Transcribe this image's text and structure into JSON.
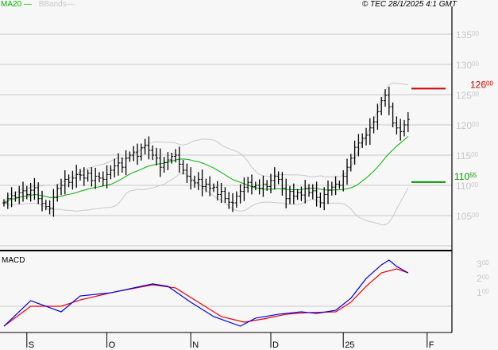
{
  "legend": {
    "ma_label": "MA20",
    "bb_label": "BBands",
    "ma_color": "#00b000",
    "bb_color": "#c8c8c8"
  },
  "copyright": "© TEC 28/1/2025 4:1 GMT",
  "macd_label": "MACD",
  "chart_data": {
    "type": "line",
    "title": "",
    "price_axis": {
      "ticks": [
        {
          "int": "135",
          "dec": "00",
          "v": 135
        },
        {
          "int": "130",
          "dec": "00",
          "v": 130
        },
        {
          "int": "125",
          "dec": "00",
          "v": 125
        },
        {
          "int": "120",
          "dec": "00",
          "v": 120
        },
        {
          "int": "115",
          "dec": "00",
          "v": 115
        },
        {
          "int": "110",
          "dec": "00",
          "v": 110
        },
        {
          "int": "105",
          "dec": "00",
          "v": 105
        }
      ],
      "gridlines": [
        135,
        130,
        125,
        120,
        115,
        110,
        105,
        100
      ]
    },
    "closes": [
      107.1,
      107.8,
      108.3,
      108.0,
      108.8,
      109.1,
      108.5,
      109.2,
      109.6,
      107.8,
      107.0,
      106.5,
      106.2,
      108.0,
      109.5,
      110.0,
      111.0,
      110.5,
      111.2,
      111.8,
      111.7,
      111.2,
      112.0,
      110.8,
      111.5,
      111.2,
      111.0,
      111.8,
      112.5,
      113.2,
      113.7,
      113.0,
      114.5,
      115.0,
      115.5,
      114.8,
      116.2,
      116.6,
      115.8,
      115.0,
      114.5,
      113.0,
      113.8,
      114.2,
      114.8,
      115.0,
      113.5,
      112.5,
      111.5,
      110.8,
      110.4,
      111.0,
      109.8,
      110.2,
      109.5,
      109.7,
      108.5,
      109.0,
      107.8,
      107.2,
      107.1,
      108.2,
      109.0,
      109.7,
      110.5,
      109.8,
      110.0,
      109.5,
      110.2,
      109.8,
      110.8,
      111.5,
      111.0,
      109.5,
      107.8,
      109.0,
      108.2,
      108.8,
      108.4,
      109.5,
      108.8,
      109.1,
      108.0,
      107.1,
      108.5,
      109.2,
      109.7,
      110.2,
      110.0,
      111.5,
      113.0,
      114.5,
      116.3,
      117.0,
      117.8,
      118.3,
      119.5,
      120.5,
      122.2,
      124.0,
      124.9,
      123.0,
      120.3,
      119.5,
      118.9,
      120.0,
      120.9
    ],
    "levels": [
      {
        "value": 126.0,
        "int": "126",
        "dec": "00",
        "color": "#cc0000"
      },
      {
        "value": 110.55,
        "int": "110",
        "dec": "55",
        "color": "#009900"
      }
    ],
    "macd": {
      "ticks": [
        {
          "int": "3",
          "dec": "00",
          "v": 300
        },
        {
          "int": "2",
          "dec": "00",
          "v": 200
        },
        {
          "int": "1",
          "dec": "00",
          "v": 100
        }
      ],
      "macd_line": [
        [
          0,
          -139
        ],
        [
          7,
          39
        ],
        [
          15,
          -39
        ],
        [
          20,
          72
        ],
        [
          28,
          94
        ],
        [
          39,
          156
        ],
        [
          43,
          139
        ],
        [
          49,
          28
        ],
        [
          55,
          -72
        ],
        [
          62,
          -139
        ],
        [
          66,
          -83
        ],
        [
          72,
          -56
        ],
        [
          78,
          -39
        ],
        [
          82,
          -50
        ],
        [
          87,
          -28
        ],
        [
          91,
          56
        ],
        [
          95,
          194
        ],
        [
          99,
          289
        ],
        [
          101,
          322
        ],
        [
          103,
          278
        ],
        [
          106,
          233
        ]
      ],
      "signal_line": [
        [
          0,
          -139
        ],
        [
          7,
          0
        ],
        [
          15,
          0
        ],
        [
          20,
          44
        ],
        [
          28,
          94
        ],
        [
          39,
          150
        ],
        [
          45,
          128
        ],
        [
          51,
          28
        ],
        [
          57,
          -72
        ],
        [
          63,
          -111
        ],
        [
          68,
          -89
        ],
        [
          74,
          -56
        ],
        [
          80,
          -44
        ],
        [
          87,
          -39
        ],
        [
          91,
          28
        ],
        [
          95,
          139
        ],
        [
          99,
          233
        ],
        [
          103,
          261
        ],
        [
          106,
          233
        ]
      ],
      "macd_color": "#0000ee",
      "signal_color": "#ee0000"
    },
    "x_axis": {
      "labels": [
        {
          "text": "S",
          "day": 6
        },
        {
          "text": "O",
          "day": 27
        },
        {
          "text": "N",
          "day": 49
        },
        {
          "text": "D",
          "day": 70
        },
        {
          "text": "25",
          "day": 89
        },
        {
          "text": "F",
          "day": 111
        }
      ]
    }
  }
}
